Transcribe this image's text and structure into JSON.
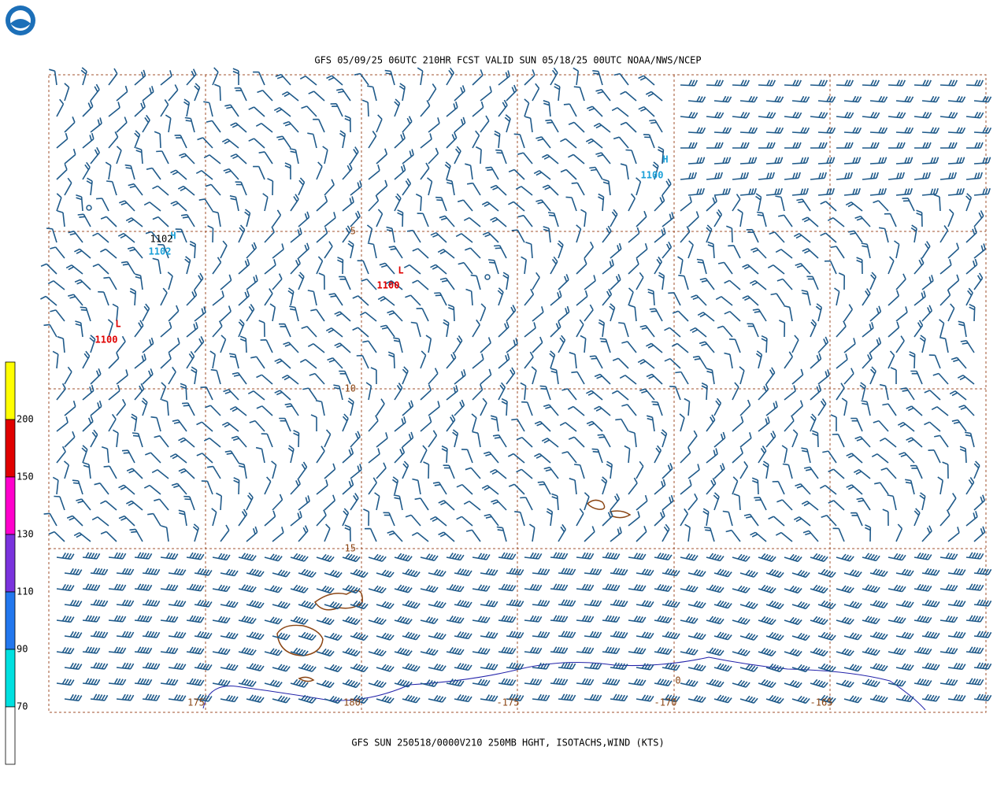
{
  "header": {
    "title": "GFS 05/09/25 06UTC 210HR FCST VALID SUN 05/18/25 00UTC NOAA/NWS/NCEP"
  },
  "footer": {
    "caption": "GFS SUN 250518/0000V210 250MB HGHT, ISOTACHS,WIND (KTS)"
  },
  "legend": {
    "colors": [
      "#ffff00",
      "#e00000",
      "#ff00cc",
      "#7a33dd",
      "#2277ee",
      "#00e0e0",
      "#ffffff"
    ],
    "labels": [
      "200",
      "150",
      "130",
      "110",
      "90",
      "70"
    ]
  },
  "map": {
    "latitude_labels": [
      "5",
      "10",
      "15"
    ],
    "longitude_labels": [
      "175",
      "180",
      "-175",
      "-170",
      "-165"
    ],
    "centers": [
      {
        "symbol": "L",
        "value": "1100",
        "color": "#e00000"
      },
      {
        "symbol": "L",
        "value": "1100",
        "color": "#e00000"
      },
      {
        "symbol": "H",
        "value": "1100",
        "color": "#1aa0d8"
      },
      {
        "symbol": "H",
        "value": "1102",
        "color": "#1aa0d8"
      }
    ],
    "black_label": "1102",
    "contour_label": "0"
  }
}
